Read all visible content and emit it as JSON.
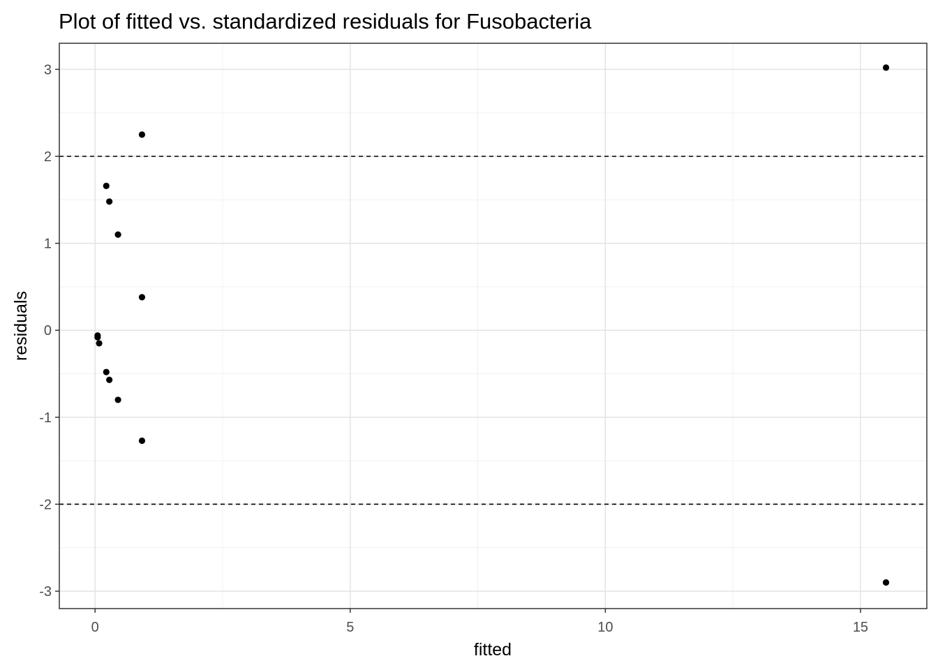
{
  "chart_data": {
    "type": "scatter",
    "title": "Plot of fitted vs. standardized residuals for Fusobacteria",
    "xlabel": "fitted",
    "ylabel": "residuals",
    "xlim": [
      -0.7,
      16.3
    ],
    "ylim": [
      -3.2,
      3.3
    ],
    "x_ticks": [
      0,
      5,
      10,
      15
    ],
    "x_tick_labels": [
      "0",
      "5",
      "10",
      "15"
    ],
    "y_ticks": [
      -3,
      -2,
      -1,
      0,
      1,
      2,
      3
    ],
    "y_tick_labels": [
      "-3",
      "-2",
      "-1",
      "0",
      "1",
      "2",
      "3"
    ],
    "x_minor_ticks": [
      2.5,
      7.5,
      12.5
    ],
    "y_minor_ticks": [
      -2.5,
      -1.5,
      -0.5,
      0.5,
      1.5,
      2.5
    ],
    "grid": true,
    "reference_lines_y": [
      2,
      -2
    ],
    "reference_line_style": "dashed",
    "point_color": "#000000",
    "points": [
      {
        "x": 0.05,
        "y": -0.06
      },
      {
        "x": 0.05,
        "y": -0.08
      },
      {
        "x": 0.08,
        "y": -0.15
      },
      {
        "x": 0.22,
        "y": 1.66
      },
      {
        "x": 0.22,
        "y": -0.48
      },
      {
        "x": 0.28,
        "y": 1.48
      },
      {
        "x": 0.28,
        "y": -0.57
      },
      {
        "x": 0.45,
        "y": 1.1
      },
      {
        "x": 0.45,
        "y": -0.8
      },
      {
        "x": 0.92,
        "y": 2.25
      },
      {
        "x": 0.92,
        "y": 0.38
      },
      {
        "x": 0.92,
        "y": -1.27
      },
      {
        "x": 15.5,
        "y": 3.02
      },
      {
        "x": 15.5,
        "y": -2.9
      }
    ]
  }
}
